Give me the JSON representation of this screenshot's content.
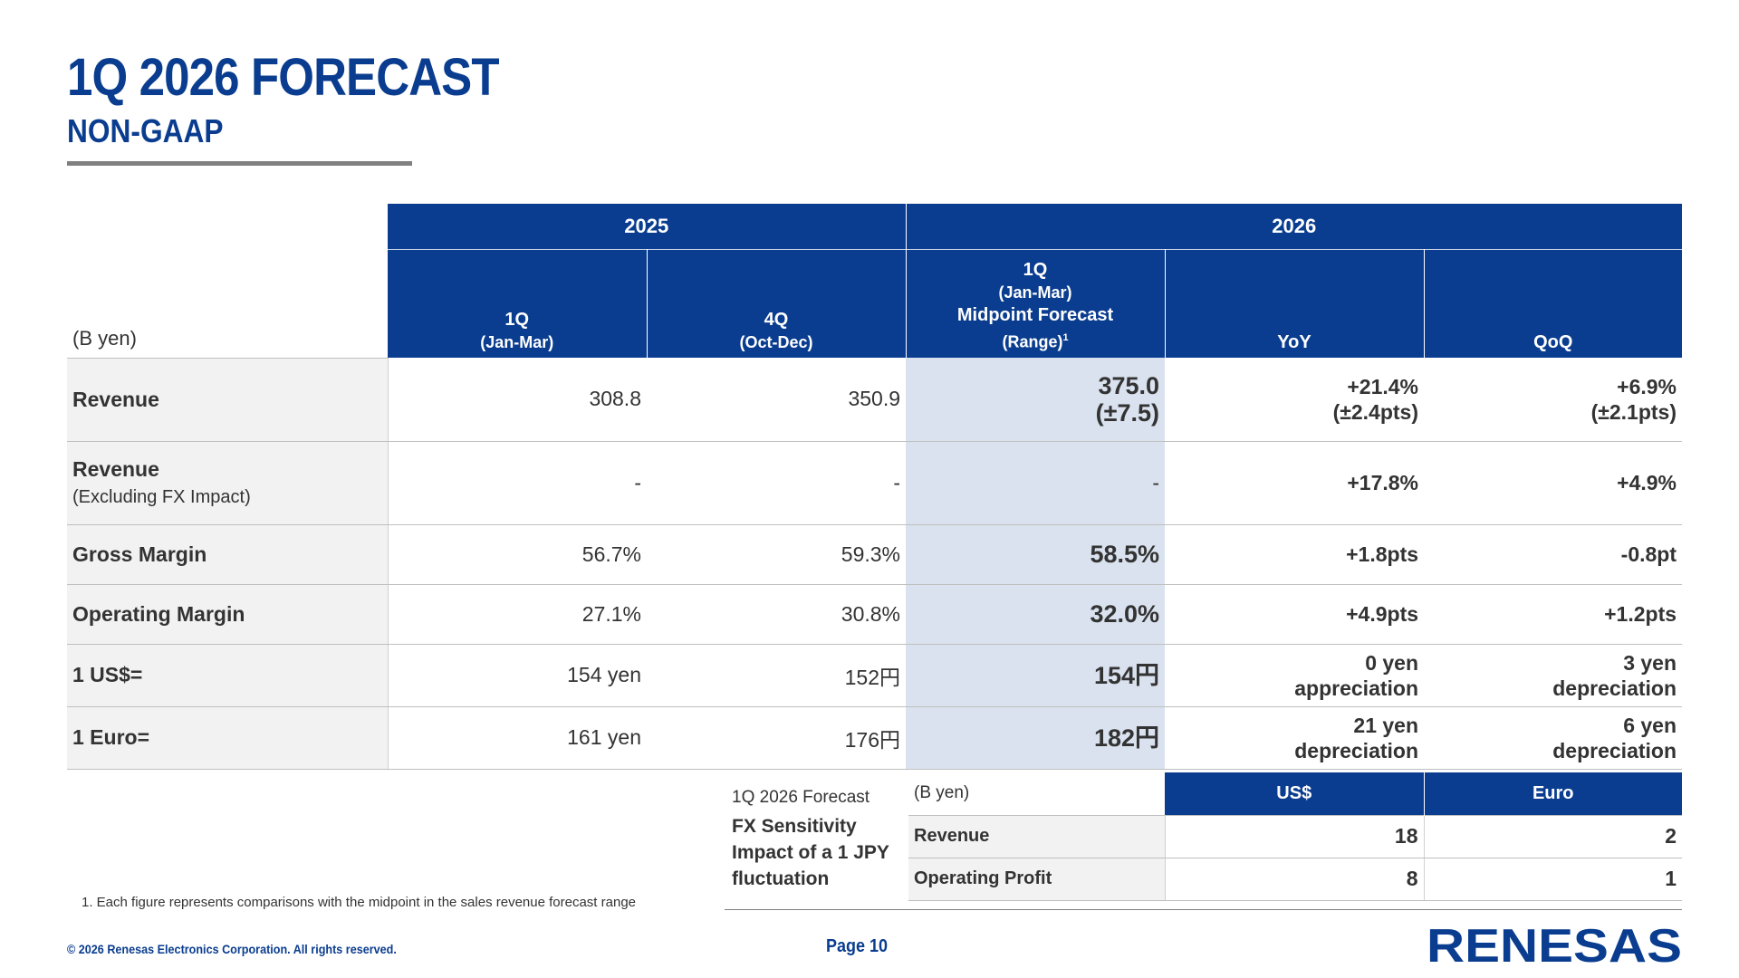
{
  "header": {
    "title": "1Q 2026 FORECAST",
    "subtitle": "NON-GAAP"
  },
  "main_table": {
    "unit": "(B yen)",
    "years": {
      "y2025": "2025",
      "y2026": "2026"
    },
    "columns": {
      "q1_2025": {
        "line1": "1Q",
        "line2": "(Jan-Mar)"
      },
      "q4_2025": {
        "line1": "4Q",
        "line2": "(Oct-Dec)"
      },
      "q1_2026": {
        "line1": "1Q",
        "line2": "(Jan-Mar)",
        "line3": "Midpoint Forecast",
        "line4": "(Range)",
        "sup": "1"
      },
      "yoy": "YoY",
      "qoq": "QoQ"
    },
    "rows": [
      {
        "label": "Revenue",
        "note": "",
        "q1_2025": "308.8",
        "q4_2025": "350.9",
        "forecast": "375.0",
        "forecast_range": "(±7.5)",
        "yoy": "+21.4%",
        "yoy_sub": "(±2.4pts)",
        "qoq": "+6.9%",
        "qoq_sub": "(±2.1pts)"
      },
      {
        "label": "Revenue",
        "note": "(Excluding FX Impact)",
        "q1_2025": "-",
        "q4_2025": "-",
        "forecast": "-",
        "forecast_range": "",
        "yoy": "+17.8%",
        "yoy_sub": "",
        "qoq": "+4.9%",
        "qoq_sub": ""
      },
      {
        "label": "Gross Margin",
        "note": "",
        "q1_2025": "56.7%",
        "q4_2025": "59.3%",
        "forecast": "58.5%",
        "forecast_range": "",
        "yoy": "+1.8pts",
        "yoy_sub": "",
        "qoq": "-0.8pt",
        "qoq_sub": ""
      },
      {
        "label": "Operating Margin",
        "note": "",
        "q1_2025": "27.1%",
        "q4_2025": "30.8%",
        "forecast": "32.0%",
        "forecast_range": "",
        "yoy": "+4.9pts",
        "yoy_sub": "",
        "qoq": "+1.2pts",
        "qoq_sub": ""
      },
      {
        "label": "1 US$=",
        "note": "",
        "q1_2025": "154 yen",
        "q4_2025": "152円",
        "forecast": "154円",
        "forecast_range": "",
        "yoy": "0 yen",
        "yoy_sub": "appreciation",
        "qoq": "3 yen",
        "qoq_sub": "depreciation"
      },
      {
        "label": "1 Euro=",
        "note": "",
        "q1_2025": "161 yen",
        "q4_2025": "176円",
        "forecast": "182円",
        "forecast_range": "",
        "yoy": "21 yen",
        "yoy_sub": "depreciation",
        "qoq": "6 yen",
        "qoq_sub": "depreciation"
      }
    ]
  },
  "fx_sensitivity": {
    "caption": "1Q 2026 Forecast",
    "heading_line1": "FX Sensitivity",
    "heading_line2": "Impact of a 1 JPY",
    "heading_line3": "fluctuation",
    "unit": "(B yen)",
    "col_usd": "US$",
    "col_euro": "Euro",
    "rows": [
      {
        "label": "Revenue",
        "usd": "18",
        "euro": "2"
      },
      {
        "label": "Operating Profit",
        "usd": "8",
        "euro": "1"
      }
    ]
  },
  "footer": {
    "footnote": "1. Each figure represents comparisons with the midpoint in the sales revenue forecast range",
    "copyright": "© 2026 Renesas Electronics Corporation. All rights reserved.",
    "page": "Page 10",
    "logo_text": "RENESAS",
    "brand_color": "#0a3d8f"
  }
}
